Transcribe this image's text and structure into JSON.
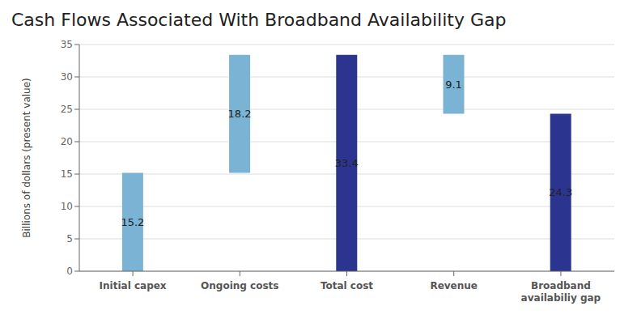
{
  "chart_data": {
    "type": "waterfall",
    "title": "Cash Flows Associated With Broadband Availability Gap",
    "categories": [
      "Initial capex",
      "Ongoing costs",
      "Total cost",
      "Revenue",
      "Broadband\navailabiliy gap"
    ],
    "values": [
      15.2,
      18.2,
      33.4,
      9.1,
      24.3
    ],
    "bottoms": [
      0,
      15.2,
      0,
      24.3,
      0
    ],
    "colors": [
      "#7ab3d4",
      "#7ab3d4",
      "#2b3590",
      "#7ab3d4",
      "#2b3590"
    ],
    "ylabel": "Billions of dollars (present value)",
    "ylim": [
      0,
      35
    ],
    "yticks": [
      0,
      5,
      10,
      15,
      20,
      25,
      30,
      35
    ],
    "grid": true,
    "data_labels": true
  }
}
